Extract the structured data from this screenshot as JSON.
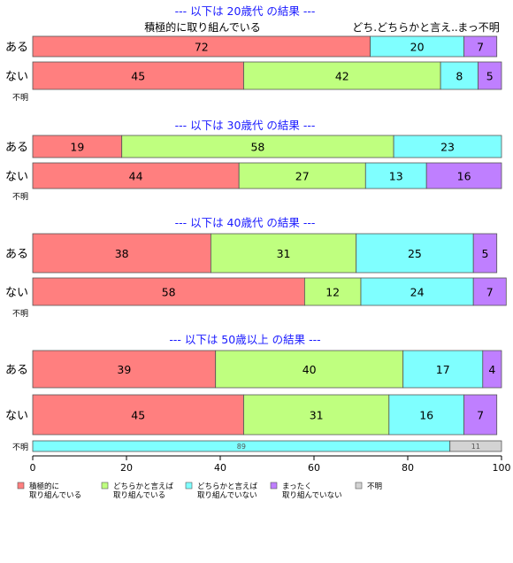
{
  "chart_data": {
    "type": "bar",
    "orientation": "horizontal",
    "stacked": true,
    "xlim": [
      0,
      100
    ],
    "x_ticks": [
      "0",
      "20",
      "40",
      "60",
      "80",
      "100"
    ],
    "series": [
      {
        "name": "積極的に\n取り組んでいる",
        "color": "#ff7f7f"
      },
      {
        "name": "どちらかと言えば\n取り組んでいる",
        "color": "#bfff7f"
      },
      {
        "name": "どちらかと言えば\n取り組んでいない",
        "color": "#7fffff"
      },
      {
        "name": "まったく\n取り組んでいない",
        "color": "#bf7fff"
      },
      {
        "name": "不明",
        "color": "#d3d3d3"
      }
    ],
    "top_labels": [
      {
        "text": "積極的に取り組んでいる",
        "series": 0
      },
      {
        "text": "どち.どちらかと言え..",
        "series": 2
      },
      {
        "text": "まっ不明",
        "series": 3
      }
    ],
    "panels": [
      {
        "title": "--- 以下は 20歳代 の結果 ---",
        "rows": [
          {
            "label": "ある",
            "values": [
              72,
              0,
              20,
              7,
              0
            ]
          },
          {
            "label": "ない",
            "values": [
              45,
              42,
              8,
              5,
              0
            ]
          },
          {
            "label": "不明",
            "values": [
              0,
              0,
              0,
              0,
              0
            ]
          }
        ]
      },
      {
        "title": "--- 以下は 30歳代 の結果 ---",
        "rows": [
          {
            "label": "ある",
            "values": [
              19,
              58,
              23,
              0,
              0
            ]
          },
          {
            "label": "ない",
            "values": [
              44,
              27,
              13,
              16,
              0
            ]
          },
          {
            "label": "不明",
            "values": [
              0,
              0,
              0,
              0,
              0
            ]
          }
        ]
      },
      {
        "title": "--- 以下は 40歳代 の結果 ---",
        "rows": [
          {
            "label": "ある",
            "values": [
              38,
              31,
              25,
              5,
              0
            ]
          },
          {
            "label": "ない",
            "values": [
              58,
              12,
              24,
              7,
              0
            ]
          },
          {
            "label": "不明",
            "values": [
              0,
              0,
              0,
              0,
              0
            ]
          }
        ]
      },
      {
        "title": "--- 以下は 50歳以上 の結果 ---",
        "rows": [
          {
            "label": "ある",
            "values": [
              39,
              40,
              17,
              4,
              0
            ]
          },
          {
            "label": "ない",
            "values": [
              45,
              31,
              16,
              7,
              0
            ]
          },
          {
            "label": "不明",
            "values": [
              0,
              0,
              89,
              0,
              11
            ]
          }
        ]
      }
    ]
  }
}
